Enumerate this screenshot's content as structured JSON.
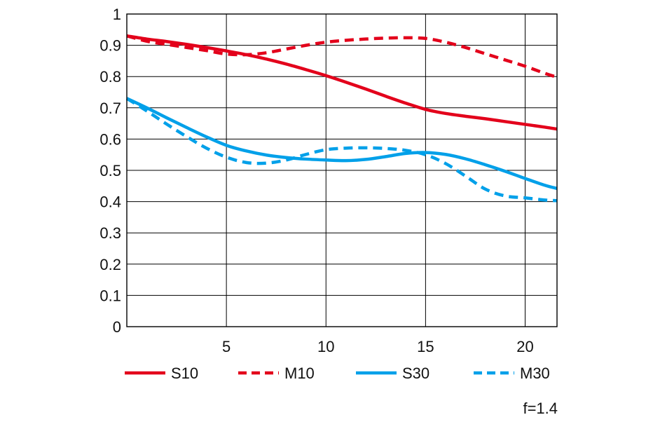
{
  "chart_data": {
    "type": "line",
    "xlim": [
      0,
      21.6
    ],
    "ylim": [
      0,
      1
    ],
    "xticks": [
      5,
      10,
      15,
      20
    ],
    "xtick_labels": [
      "5",
      "10",
      "15",
      "20"
    ],
    "yticks": [
      0,
      0.1,
      0.2,
      0.3,
      0.4,
      0.5,
      0.6,
      0.7,
      0.8,
      0.9,
      1
    ],
    "ytick_labels": [
      "0",
      "0.1",
      "0.2",
      "0.3",
      "0.4",
      "0.5",
      "0.6",
      "0.7",
      "0.8",
      "0.9",
      "1"
    ],
    "grid": true,
    "legend_position": "bottom",
    "annotation": "f=1.4",
    "series": [
      {
        "name": "S10",
        "color": "#e3001b",
        "dash": "solid",
        "x": [
          0,
          1,
          2,
          3,
          4,
          5,
          6,
          7,
          8,
          9,
          10,
          11,
          12,
          13,
          14,
          15,
          16,
          17,
          18,
          19,
          20,
          21,
          21.6
        ],
        "y": [
          0.93,
          0.92,
          0.912,
          0.903,
          0.893,
          0.882,
          0.87,
          0.856,
          0.84,
          0.822,
          0.803,
          0.782,
          0.76,
          0.737,
          0.715,
          0.695,
          0.682,
          0.673,
          0.665,
          0.656,
          0.647,
          0.638,
          0.632
        ]
      },
      {
        "name": "M10",
        "color": "#e3001b",
        "dash": "dashed",
        "x": [
          0,
          1,
          2,
          3,
          4,
          5,
          6,
          7,
          8,
          9,
          10,
          11,
          12,
          13,
          14,
          15,
          16,
          17,
          18,
          19,
          20,
          21,
          21.6
        ],
        "y": [
          0.93,
          0.913,
          0.903,
          0.893,
          0.883,
          0.872,
          0.87,
          0.876,
          0.888,
          0.9,
          0.91,
          0.916,
          0.92,
          0.923,
          0.924,
          0.922,
          0.91,
          0.893,
          0.873,
          0.853,
          0.833,
          0.81,
          0.798
        ]
      },
      {
        "name": "S30",
        "color": "#00a0e9",
        "dash": "solid",
        "x": [
          0,
          1,
          2,
          3,
          4,
          5,
          6,
          7,
          8,
          9,
          10,
          11,
          12,
          13,
          14,
          15,
          16,
          17,
          18,
          19,
          20,
          21,
          21.6
        ],
        "y": [
          0.73,
          0.7,
          0.668,
          0.637,
          0.607,
          0.58,
          0.562,
          0.549,
          0.541,
          0.536,
          0.533,
          0.531,
          0.535,
          0.544,
          0.554,
          0.557,
          0.551,
          0.537,
          0.518,
          0.497,
          0.474,
          0.452,
          0.442
        ]
      },
      {
        "name": "M30",
        "color": "#00a0e9",
        "dash": "dashed",
        "x": [
          0,
          1,
          2,
          3,
          4,
          5,
          6,
          7,
          8,
          9,
          10,
          11,
          12,
          13,
          14,
          15,
          16,
          17,
          18,
          19,
          20,
          21,
          21.6
        ],
        "y": [
          0.73,
          0.69,
          0.648,
          0.608,
          0.571,
          0.542,
          0.525,
          0.523,
          0.533,
          0.551,
          0.566,
          0.571,
          0.572,
          0.57,
          0.564,
          0.55,
          0.522,
          0.482,
          0.44,
          0.418,
          0.412,
          0.405,
          0.403
        ]
      }
    ]
  }
}
